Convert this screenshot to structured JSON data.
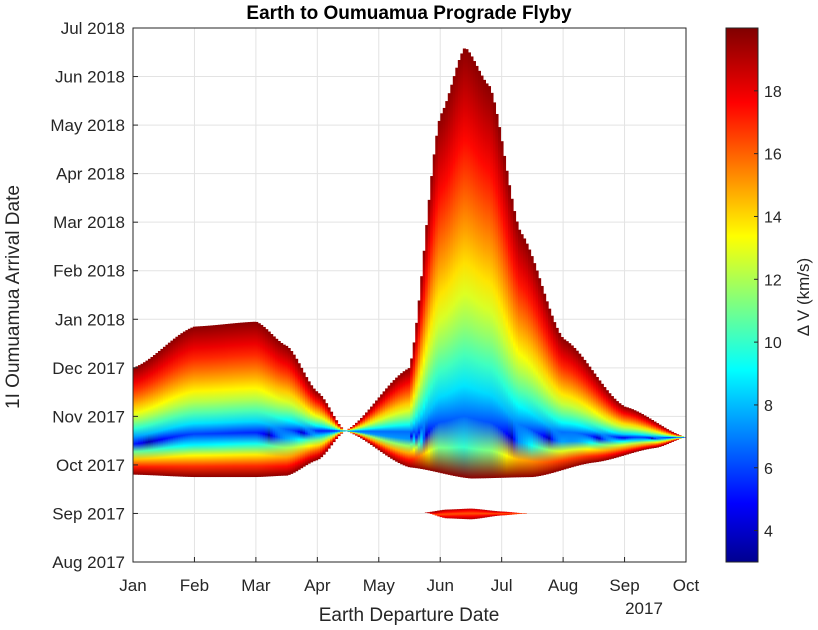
{
  "chart_data": {
    "type": "heatmap",
    "title": "Earth to Oumuamua Prograde Flyby",
    "xlabel": "Earth Departure Date",
    "ylabel": "1I Oumuamua Arrival Date",
    "x_year_label": "2017",
    "x_ticks": [
      {
        "label": "Jan",
        "month": 0
      },
      {
        "label": "Feb",
        "month": 1
      },
      {
        "label": "Mar",
        "month": 2
      },
      {
        "label": "Apr",
        "month": 3
      },
      {
        "label": "May",
        "month": 4
      },
      {
        "label": "Jun",
        "month": 5
      },
      {
        "label": "Jul",
        "month": 6
      },
      {
        "label": "Aug",
        "month": 7
      },
      {
        "label": "Sep",
        "month": 8
      },
      {
        "label": "Oct",
        "month": 9
      }
    ],
    "y_ticks": [
      {
        "label": "Aug 2017",
        "month": 0
      },
      {
        "label": "Sep 2017",
        "month": 1
      },
      {
        "label": "Oct 2017",
        "month": 2
      },
      {
        "label": "Nov 2017",
        "month": 3
      },
      {
        "label": "Dec 2017",
        "month": 4
      },
      {
        "label": "Jan 2018",
        "month": 5
      },
      {
        "label": "Feb 2018",
        "month": 6
      },
      {
        "label": "Mar 2018",
        "month": 7
      },
      {
        "label": "Apr 2018",
        "month": 8
      },
      {
        "label": "May 2018",
        "month": 9
      },
      {
        "label": "Jun 2018",
        "month": 10
      },
      {
        "label": "Jul 2018",
        "month": 11
      }
    ],
    "xlim": [
      "Jan 2017",
      "Oct 2017"
    ],
    "ylim": [
      "Aug 2017",
      "Jul 2018"
    ],
    "grid": true,
    "colorbar": {
      "label": "Δ V (km/s)",
      "range": [
        3,
        20
      ],
      "ticks": [
        4,
        6,
        8,
        10,
        12,
        14,
        16,
        18
      ],
      "colormap": "jet"
    },
    "regions": [
      {
        "name": "left lobe",
        "upper": [
          [
            0,
            4.0
          ],
          [
            1,
            4.85
          ],
          [
            2,
            4.95
          ],
          [
            2.5,
            4.45
          ],
          [
            3.0,
            3.5
          ],
          [
            3.45,
            2.7
          ]
        ],
        "lower": [
          [
            0,
            1.8
          ],
          [
            1,
            1.75
          ],
          [
            2,
            1.75
          ],
          [
            2.5,
            1.78
          ],
          [
            3.0,
            2.1
          ],
          [
            3.45,
            2.7
          ]
        ],
        "min": [
          [
            0,
            2.45
          ],
          [
            1,
            2.55
          ],
          [
            2,
            2.6
          ],
          [
            3.0,
            2.68
          ],
          [
            3.45,
            2.7
          ]
        ]
      },
      {
        "name": "right lobe",
        "upper": [
          [
            3.45,
            2.7
          ],
          [
            4.5,
            4.0
          ],
          [
            5.0,
            9.2
          ],
          [
            5.4,
            10.6
          ],
          [
            5.8,
            9.8
          ],
          [
            6.3,
            6.8
          ],
          [
            7.0,
            4.6
          ],
          [
            8.0,
            3.2
          ],
          [
            9.0,
            2.57
          ]
        ],
        "lower": [
          [
            3.45,
            2.7
          ],
          [
            4.5,
            1.95
          ],
          [
            5.5,
            1.72
          ],
          [
            6.5,
            1.75
          ],
          [
            7.5,
            2.05
          ],
          [
            8.5,
            2.35
          ],
          [
            9.0,
            2.57
          ]
        ],
        "min": [
          [
            3.45,
            2.7
          ],
          [
            4.5,
            2.6
          ],
          [
            5.5,
            2.55
          ],
          [
            6.5,
            2.55
          ],
          [
            7.5,
            2.55
          ],
          [
            8.5,
            2.55
          ],
          [
            9.0,
            2.57
          ]
        ]
      },
      {
        "name": "small region",
        "upper": [
          [
            4.75,
            1.02
          ],
          [
            5.1,
            1.08
          ],
          [
            5.5,
            1.1
          ],
          [
            6.0,
            1.04
          ],
          [
            6.4,
            1.0
          ]
        ],
        "lower": [
          [
            4.75,
            1.02
          ],
          [
            5.1,
            0.9
          ],
          [
            5.5,
            0.88
          ],
          [
            6.0,
            0.96
          ],
          [
            6.4,
            1.0
          ]
        ],
        "min": [
          [
            4.75,
            0.97
          ],
          [
            5.5,
            1.0
          ],
          [
            6.4,
            0.99
          ]
        ]
      }
    ]
  }
}
